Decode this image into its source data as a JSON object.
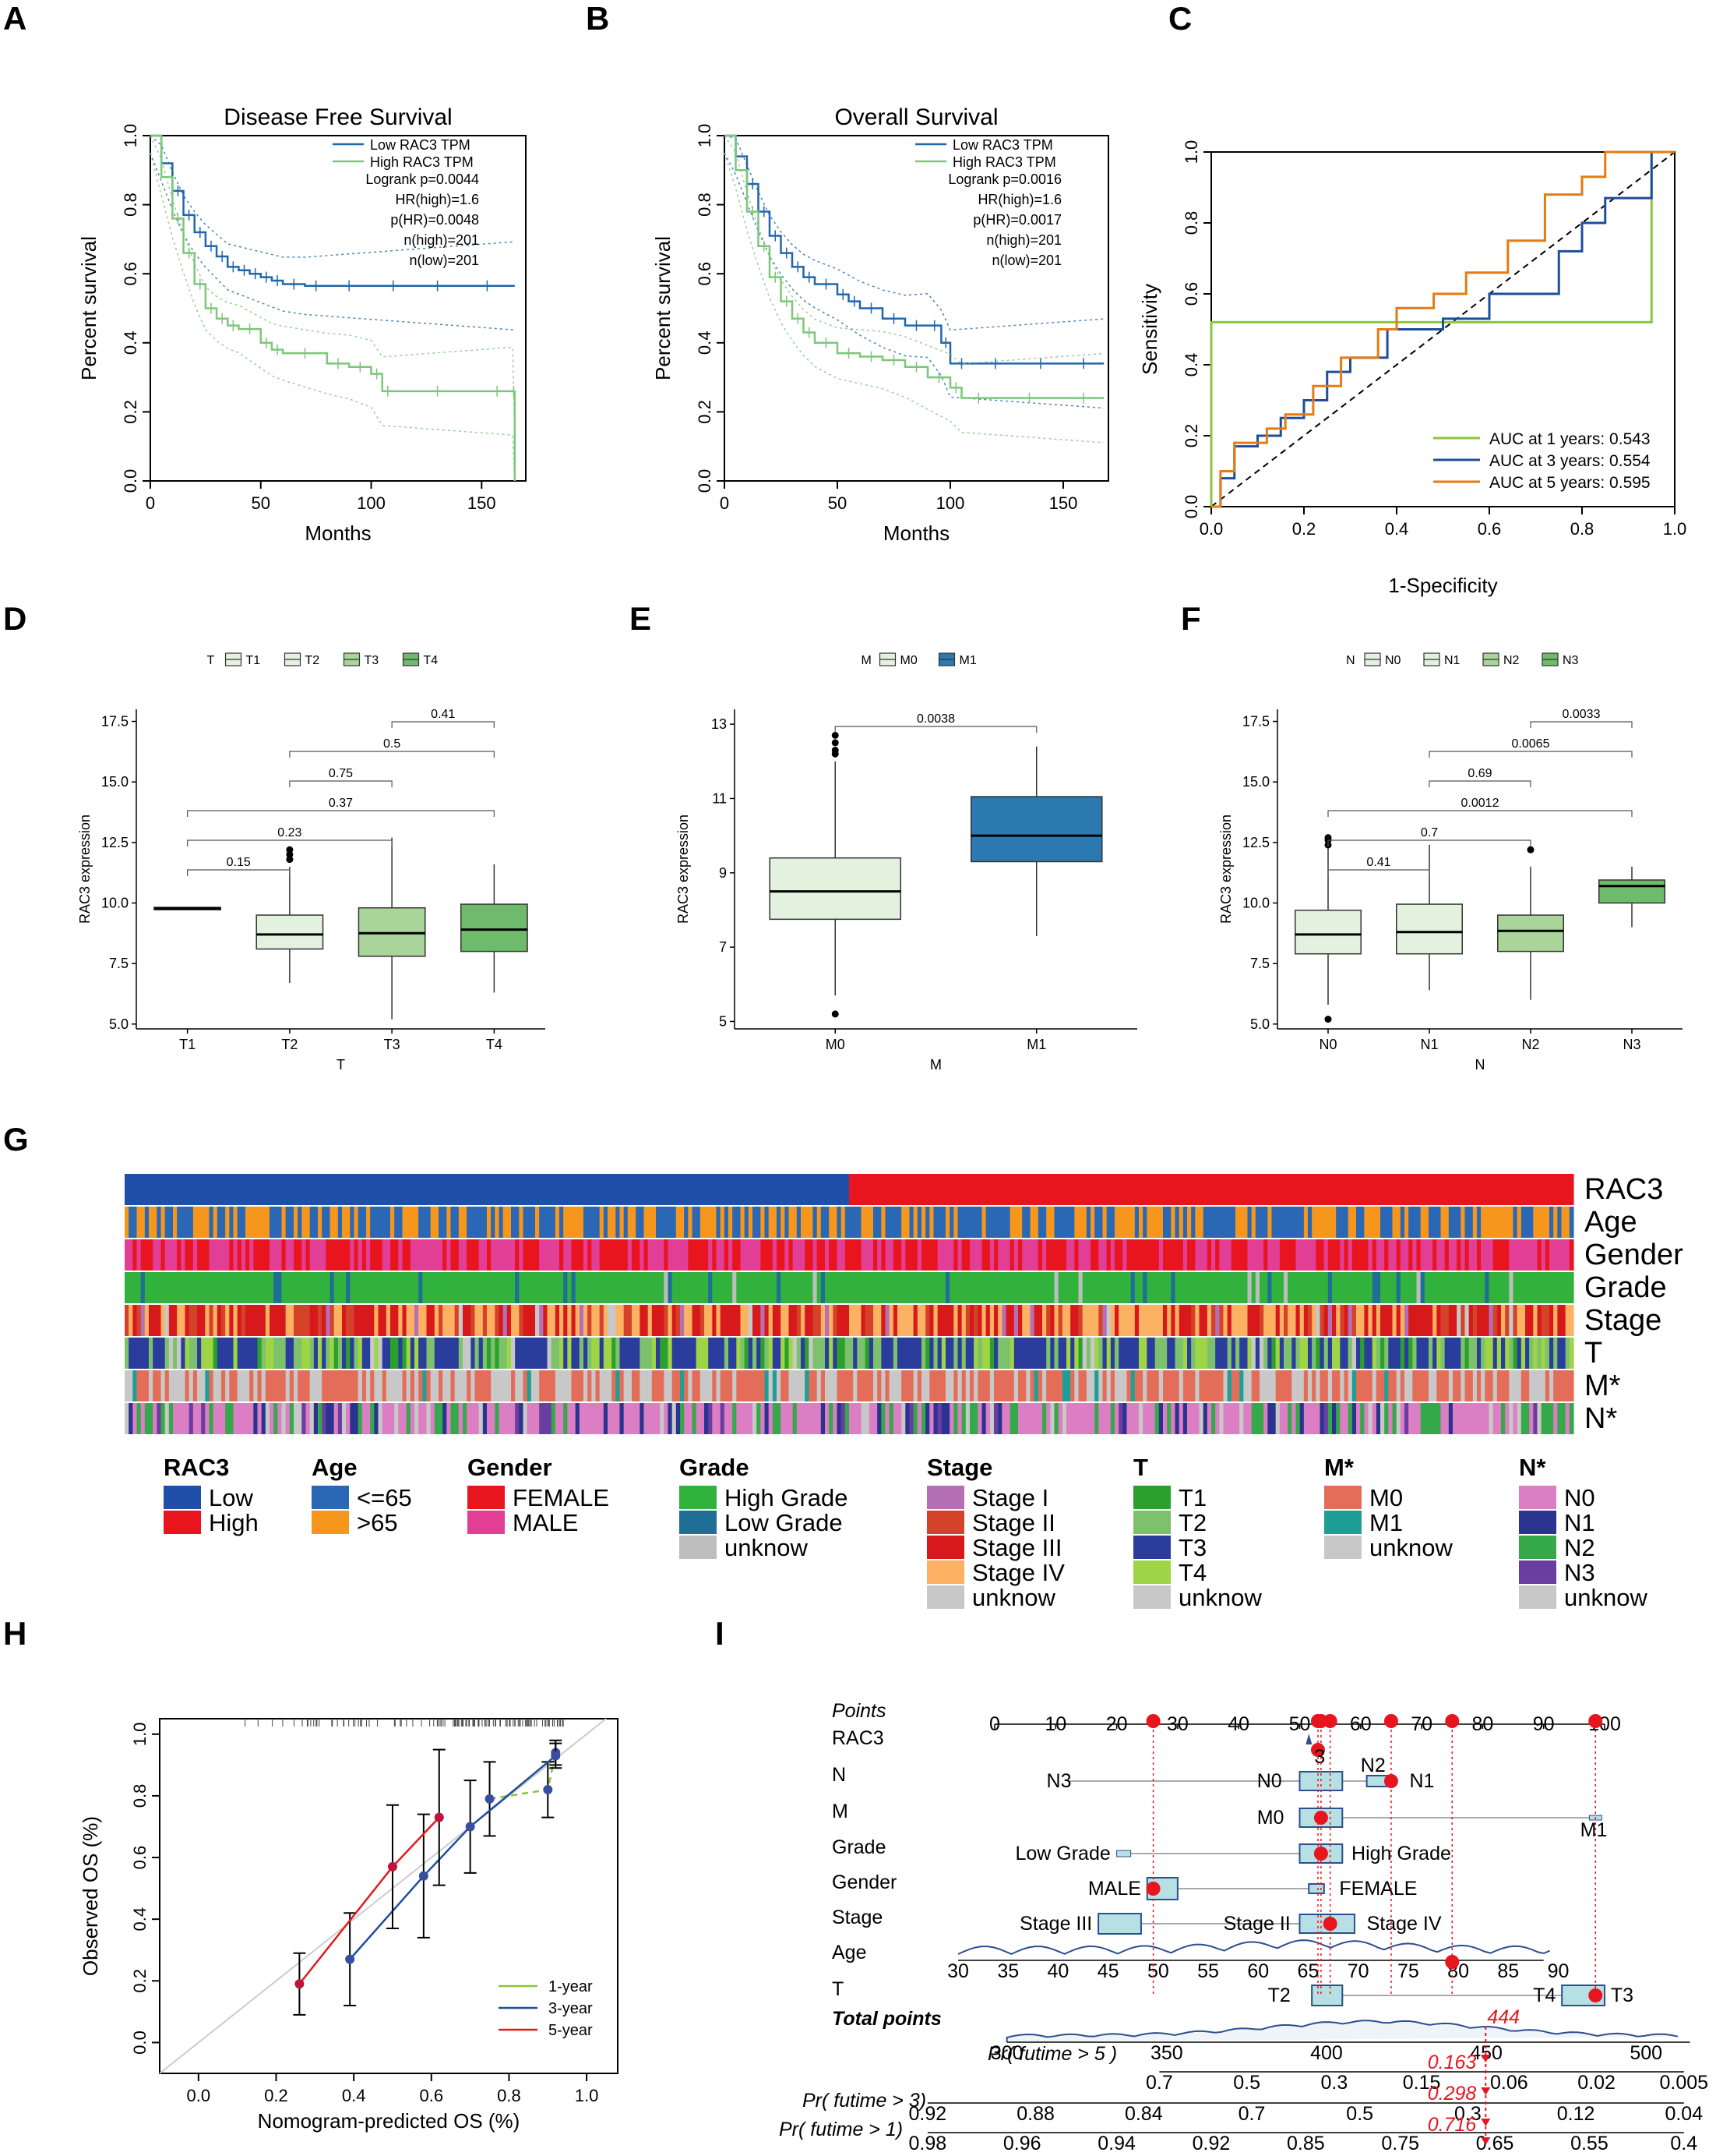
{
  "panel_letters": [
    "A",
    "B",
    "C",
    "D",
    "E",
    "F",
    "G",
    "H",
    "I"
  ],
  "colors": {
    "low": "#2166ac",
    "high": "#7cc77a",
    "auc1": "#8cc540",
    "auc3": "#1f4e9b",
    "auc5": "#e57b11",
    "box_light": "#e3f1df",
    "box_mid": "#a9d59b",
    "box_dark": "#6dbb6b",
    "box_m1": "#2c79b1",
    "red": "#e41a1c"
  },
  "chart_data": [
    {
      "id": "A",
      "type": "line",
      "title": "Disease Free Survival",
      "xlabel": "Months",
      "ylabel": "Percent survival",
      "xlim": [
        0,
        170
      ],
      "ylim": [
        0,
        1.0
      ],
      "xticks": [
        "0",
        "50",
        "100",
        "150"
      ],
      "yticks": [
        "0.0",
        "0.2",
        "0.4",
        "0.6",
        "0.8",
        "1.0"
      ],
      "legend": [
        "Low RAC3 TPM",
        "High RAC3 TPM"
      ],
      "stats": [
        "Logrank p=0.0044",
        "HR(high)=1.6",
        "p(HR)=0.0048",
        "n(high)=201",
        "n(low)=201"
      ],
      "series": [
        {
          "name": "Low RAC3 TPM",
          "x": [
            0,
            5,
            10,
            15,
            20,
            25,
            30,
            35,
            40,
            45,
            50,
            55,
            60,
            70,
            80,
            100,
            120,
            140,
            165
          ],
          "y": [
            1.0,
            0.92,
            0.84,
            0.77,
            0.72,
            0.68,
            0.65,
            0.62,
            0.61,
            0.6,
            0.59,
            0.58,
            0.57,
            0.565,
            0.565,
            0.565,
            0.565,
            0.565,
            0.565
          ]
        },
        {
          "name": "High RAC3 TPM",
          "x": [
            0,
            5,
            10,
            15,
            20,
            25,
            30,
            35,
            40,
            50,
            55,
            60,
            80,
            90,
            100,
            105,
            110,
            150,
            164,
            165
          ],
          "y": [
            1.0,
            0.88,
            0.76,
            0.66,
            0.57,
            0.5,
            0.47,
            0.45,
            0.44,
            0.4,
            0.38,
            0.37,
            0.34,
            0.33,
            0.31,
            0.26,
            0.26,
            0.26,
            0.26,
            0.0
          ]
        }
      ]
    },
    {
      "id": "B",
      "type": "line",
      "title": "Overall Survival",
      "xlabel": "Months",
      "ylabel": "Percent survival",
      "xlim": [
        0,
        170
      ],
      "ylim": [
        0,
        1.0
      ],
      "xticks": [
        "0",
        "50",
        "100",
        "150"
      ],
      "yticks": [
        "0.0",
        "0.2",
        "0.4",
        "0.6",
        "0.8",
        "1.0"
      ],
      "legend": [
        "Low RAC3 TPM",
        "High RAC3 TPM"
      ],
      "stats": [
        "Logrank p=0.0016",
        "HR(high)=1.6",
        "p(HR)=0.0017",
        "n(high)=201",
        "n(low)=201"
      ],
      "series": [
        {
          "name": "Low RAC3 TPM",
          "x": [
            0,
            5,
            10,
            15,
            20,
            25,
            30,
            35,
            40,
            50,
            55,
            60,
            70,
            80,
            90,
            96,
            100,
            110,
            130,
            150,
            168
          ],
          "y": [
            1.0,
            0.94,
            0.86,
            0.78,
            0.71,
            0.66,
            0.62,
            0.59,
            0.57,
            0.54,
            0.52,
            0.5,
            0.47,
            0.45,
            0.45,
            0.4,
            0.34,
            0.34,
            0.34,
            0.34,
            0.34
          ]
        },
        {
          "name": "High RAC3 TPM",
          "x": [
            0,
            5,
            10,
            15,
            20,
            25,
            30,
            35,
            40,
            50,
            60,
            70,
            80,
            90,
            100,
            105,
            120,
            150,
            168
          ],
          "y": [
            1.0,
            0.9,
            0.78,
            0.68,
            0.59,
            0.52,
            0.47,
            0.43,
            0.4,
            0.37,
            0.36,
            0.35,
            0.33,
            0.3,
            0.27,
            0.24,
            0.24,
            0.24,
            0.24
          ]
        }
      ]
    },
    {
      "id": "C",
      "type": "line",
      "title": "",
      "xlabel": "1-Specificity",
      "ylabel": "Sensitivity",
      "xlim": [
        0,
        1
      ],
      "ylim": [
        0,
        1
      ],
      "xticks": [
        "0.0",
        "0.2",
        "0.4",
        "0.6",
        "0.8",
        "1.0"
      ],
      "yticks": [
        "0.0",
        "0.2",
        "0.4",
        "0.6",
        "0.8",
        "1.0"
      ],
      "legend": [
        "AUC at 1 years: 0.543",
        "AUC at 3 years: 0.554",
        "AUC at 5 years: 0.595"
      ],
      "series": [
        {
          "name": "AUC at 1 years: 0.543",
          "x": [
            0,
            0,
            0.95,
            0.95,
            1
          ],
          "y": [
            0,
            0.52,
            0.52,
            1,
            1
          ]
        },
        {
          "name": "AUC at 3 years: 0.554",
          "x": [
            0,
            0.02,
            0.02,
            0.05,
            0.05,
            0.1,
            0.1,
            0.15,
            0.15,
            0.2,
            0.2,
            0.25,
            0.25,
            0.3,
            0.3,
            0.38,
            0.38,
            0.5,
            0.5,
            0.6,
            0.6,
            0.75,
            0.75,
            0.8,
            0.8,
            0.85,
            0.85,
            0.95,
            0.95,
            1
          ],
          "y": [
            0,
            0,
            0.08,
            0.08,
            0.17,
            0.17,
            0.2,
            0.2,
            0.25,
            0.25,
            0.3,
            0.3,
            0.38,
            0.38,
            0.42,
            0.42,
            0.5,
            0.5,
            0.53,
            0.53,
            0.6,
            0.6,
            0.72,
            0.72,
            0.8,
            0.8,
            0.87,
            0.87,
            1,
            1
          ]
        },
        {
          "name": "AUC at 5 years: 0.595",
          "x": [
            0,
            0.02,
            0.02,
            0.05,
            0.05,
            0.12,
            0.12,
            0.16,
            0.16,
            0.22,
            0.22,
            0.28,
            0.28,
            0.36,
            0.36,
            0.4,
            0.4,
            0.48,
            0.48,
            0.55,
            0.55,
            0.64,
            0.64,
            0.72,
            0.72,
            0.8,
            0.8,
            0.85,
            0.85,
            0.95,
            0.95,
            1
          ],
          "y": [
            0,
            0,
            0.1,
            0.1,
            0.18,
            0.18,
            0.22,
            0.22,
            0.26,
            0.26,
            0.34,
            0.34,
            0.42,
            0.42,
            0.5,
            0.5,
            0.56,
            0.56,
            0.6,
            0.6,
            0.66,
            0.66,
            0.75,
            0.75,
            0.88,
            0.88,
            0.93,
            0.93,
            1,
            1,
            1,
            1
          ]
        }
      ]
    },
    {
      "id": "D",
      "type": "box",
      "legend_title": "T",
      "legend": [
        "T1",
        "T2",
        "T3",
        "T4"
      ],
      "xlabel": "T",
      "ylabel": "RAC3 expression",
      "ylim": [
        4.8,
        18
      ],
      "yticks": [
        "5.0",
        "7.5",
        "10.0",
        "12.5",
        "15.0",
        "17.5"
      ],
      "groups": [
        {
          "name": "T1",
          "q1": 9.72,
          "med": 9.78,
          "q3": 9.82,
          "lo": 9.72,
          "hi": 9.82,
          "out": []
        },
        {
          "name": "T2",
          "q1": 8.1,
          "med": 8.7,
          "q3": 9.5,
          "lo": 6.7,
          "hi": 11.5,
          "out": [
            11.8,
            12.0,
            12.2
          ]
        },
        {
          "name": "T3",
          "q1": 7.8,
          "med": 8.75,
          "q3": 9.8,
          "lo": 5.2,
          "hi": 12.7,
          "out": []
        },
        {
          "name": "T4",
          "q1": 8.0,
          "med": 8.9,
          "q3": 9.95,
          "lo": 6.3,
          "hi": 11.6,
          "out": []
        }
      ],
      "brackets": [
        {
          "a": 0,
          "b": 1,
          "label": "0.15"
        },
        {
          "a": 0,
          "b": 2,
          "label": "0.23"
        },
        {
          "a": 0,
          "b": 3,
          "label": "0.37"
        },
        {
          "a": 1,
          "b": 2,
          "label": "0.75"
        },
        {
          "a": 1,
          "b": 3,
          "label": "0.5"
        },
        {
          "a": 2,
          "b": 3,
          "label": "0.41"
        }
      ]
    },
    {
      "id": "E",
      "type": "box",
      "legend_title": "M",
      "legend": [
        "M0",
        "M1"
      ],
      "xlabel": "M",
      "ylabel": "RAC3 expression",
      "ylim": [
        4.8,
        13.4
      ],
      "yticks": [
        "5",
        "7",
        "9",
        "11",
        "13"
      ],
      "groups": [
        {
          "name": "M0",
          "q1": 7.75,
          "med": 8.5,
          "q3": 9.4,
          "lo": 5.7,
          "hi": 12.0,
          "out": [
            5.2,
            12.2,
            12.3,
            12.5,
            12.7
          ]
        },
        {
          "name": "M1",
          "q1": 9.3,
          "med": 10.0,
          "q3": 11.05,
          "lo": 7.3,
          "hi": 12.4,
          "out": []
        }
      ],
      "brackets": [
        {
          "a": 0,
          "b": 1,
          "label": "0.0038"
        }
      ]
    },
    {
      "id": "F",
      "type": "box",
      "legend_title": "N",
      "legend": [
        "N0",
        "N1",
        "N2",
        "N3"
      ],
      "xlabel": "N",
      "ylabel": "RAC3 expression",
      "ylim": [
        4.8,
        18
      ],
      "yticks": [
        "5.0",
        "7.5",
        "10.0",
        "12.5",
        "15.0",
        "17.5"
      ],
      "groups": [
        {
          "name": "N0",
          "q1": 7.9,
          "med": 8.7,
          "q3": 9.7,
          "lo": 5.8,
          "hi": 12.3,
          "out": [
            5.2,
            12.4,
            12.6,
            12.7
          ]
        },
        {
          "name": "N1",
          "q1": 7.9,
          "med": 8.8,
          "q3": 9.95,
          "lo": 6.4,
          "hi": 12.4,
          "out": []
        },
        {
          "name": "N2",
          "q1": 8.0,
          "med": 8.85,
          "q3": 9.5,
          "lo": 6.0,
          "hi": 11.5,
          "out": [
            12.2
          ]
        },
        {
          "name": "N3",
          "q1": 10.0,
          "med": 10.7,
          "q3": 10.95,
          "lo": 9.0,
          "hi": 11.5,
          "out": []
        }
      ],
      "brackets": [
        {
          "a": 0,
          "b": 1,
          "label": "0.41"
        },
        {
          "a": 0,
          "b": 2,
          "label": "0.7"
        },
        {
          "a": 0,
          "b": 3,
          "label": "0.0012"
        },
        {
          "a": 1,
          "b": 2,
          "label": "0.69"
        },
        {
          "a": 1,
          "b": 3,
          "label": "0.0065"
        },
        {
          "a": 2,
          "b": 3,
          "label": "0.0033"
        }
      ]
    },
    {
      "id": "H",
      "type": "line",
      "xlabel": "Nomogram-predicted OS (%)",
      "ylabel": "Observed OS (%)",
      "xlim": [
        -0.1,
        1.08
      ],
      "ylim": [
        -0.1,
        1.05
      ],
      "xticks": [
        "0.0",
        "0.2",
        "0.4",
        "0.6",
        "0.8",
        "1.0"
      ],
      "yticks": [
        "0.0",
        "0.2",
        "0.4",
        "0.6",
        "0.8",
        "1.0"
      ],
      "legend": [
        "1-year",
        "3-year",
        "5-year"
      ],
      "series": [
        {
          "name": "1-year",
          "x": [
            0.75,
            0.9,
            0.92
          ],
          "y": [
            0.79,
            0.82,
            0.94
          ],
          "err": [
            0.12,
            0.09,
            0.04
          ]
        },
        {
          "name": "3-year",
          "x": [
            0.39,
            0.58,
            0.7,
            0.92
          ],
          "y": [
            0.27,
            0.54,
            0.7,
            0.93
          ],
          "err": [
            0.15,
            0.2,
            0.15,
            0.04
          ]
        },
        {
          "name": "5-year",
          "x": [
            0.26,
            0.5,
            0.62
          ],
          "y": [
            0.19,
            0.57,
            0.73
          ],
          "err": [
            0.1,
            0.2,
            0.22
          ]
        }
      ]
    }
  ],
  "heatmap": {
    "rows": [
      "RAC3",
      "Age",
      "Gender",
      "Grade",
      "Stage",
      "T",
      "M*",
      "N*"
    ],
    "legend": [
      {
        "title": "RAC3",
        "items": [
          [
            "Low",
            "#1f4fa8"
          ],
          [
            "High",
            "#e8141e"
          ]
        ]
      },
      {
        "title": "Age",
        "items": [
          [
            "<=65",
            "#2a67b4"
          ],
          [
            ">65",
            "#f7961c"
          ]
        ]
      },
      {
        "title": "Gender",
        "items": [
          [
            "FEMALE",
            "#e8141e"
          ],
          [
            "MALE",
            "#e23e96"
          ]
        ]
      },
      {
        "title": "Grade",
        "items": [
          [
            "High Grade",
            "#30b23c"
          ],
          [
            "Low Grade",
            "#1e6e96"
          ],
          [
            "unknow",
            "#bdbdbd"
          ]
        ]
      },
      {
        "title": "Stage",
        "items": [
          [
            "Stage I",
            "#b56fb4"
          ],
          [
            "Stage II",
            "#d4422a"
          ],
          [
            "Stage III",
            "#d7191c"
          ],
          [
            "Stage IV",
            "#fdb263"
          ],
          [
            "unknow",
            "#c8c8c8"
          ]
        ]
      },
      {
        "title": "T",
        "items": [
          [
            "T1",
            "#2ca02c"
          ],
          [
            "T2",
            "#7dc16c"
          ],
          [
            "T3",
            "#2b3d9c"
          ],
          [
            "T4",
            "#9fd446"
          ],
          [
            "unknow",
            "#c8c8c8"
          ]
        ]
      },
      {
        "title": "M*",
        "items": [
          [
            "M0",
            "#e46d5a"
          ],
          [
            "M1",
            "#1f9e96"
          ],
          [
            "unknow",
            "#c8c8c8"
          ]
        ]
      },
      {
        "title": "N*",
        "items": [
          [
            "N0",
            "#dc7ec3"
          ],
          [
            "N1",
            "#2b3391"
          ],
          [
            "N2",
            "#35a94a"
          ],
          [
            "N3",
            "#6a3ea1"
          ],
          [
            "unknow",
            "#c8c8c8"
          ]
        ]
      }
    ]
  },
  "nomogram": {
    "rows": [
      "Points",
      "RAC3",
      "N",
      "M",
      "Grade",
      "Gender",
      "Stage",
      "Age",
      "T",
      "Total points",
      "Pr( futime > 5 )",
      "Pr( futime > 3)",
      "Pr( futime > 1)"
    ],
    "points_ticks": [
      "0",
      "10",
      "20",
      "30",
      "40",
      "50",
      "60",
      "70",
      "80",
      "90",
      "100"
    ],
    "age_ticks": [
      "30",
      "35",
      "40",
      "45",
      "50",
      "55",
      "60",
      "65",
      "70",
      "75",
      "80",
      "85",
      "90"
    ],
    "total_ticks": [
      "300",
      "350",
      "400",
      "450",
      "500"
    ],
    "pr5_ticks": [
      "0.7",
      "0.5",
      "0.3",
      "0.15",
      "0.06",
      "0.02",
      "0.005"
    ],
    "pr3_ticks": [
      "0.92",
      "0.88",
      "0.84",
      "0.7",
      "0.5",
      "0.3",
      "0.12",
      "0.04"
    ],
    "pr1_ticks": [
      "0.98",
      "0.96",
      "0.94",
      "0.92",
      "0.85",
      "0.75",
      "0.65",
      "0.55",
      "0.4"
    ],
    "labels": {
      "n3": "N3",
      "n0": "N0",
      "n2": "N2",
      "n1": "N1",
      "m0": "M0",
      "m1": "M1",
      "low_grade": "Low Grade",
      "high_grade": "High Grade",
      "male": "MALE",
      "female": "FEMALE",
      "stage3": "Stage III",
      "stage2": "Stage II",
      "stage4": "Stage IV",
      "t2": "T2",
      "t4": "T4",
      "t3": "T3",
      "rac3_val": "3"
    },
    "total": "444",
    "pr5": "0.163",
    "pr3": "0.298",
    "pr1": "0.716"
  }
}
